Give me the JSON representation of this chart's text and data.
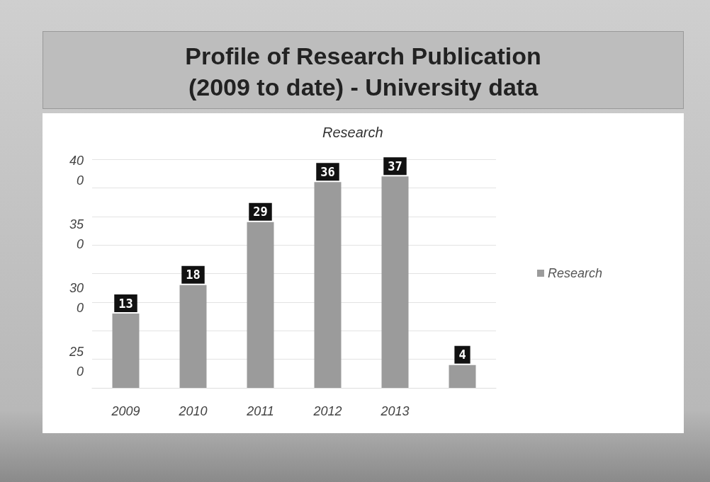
{
  "chart_data": {
    "type": "bar",
    "title": "Profile of Research Publication\n(2009 to date) - University data",
    "subtitle": "Research",
    "categories": [
      "2009",
      "2010",
      "2011",
      "2012",
      "2013",
      null
    ],
    "series": [
      {
        "name": "Research",
        "color": "#9b9b9b",
        "values": [
          13,
          18,
          29,
          36,
          37,
          4
        ]
      }
    ],
    "ylim": [
      0,
      40
    ],
    "yticks": [
      {
        "value": 0,
        "label": null
      },
      {
        "value": 5,
        "label": null
      },
      {
        "value": 10,
        "label": null
      },
      {
        "value": 15,
        "label": null
      },
      {
        "value": 20,
        "label": null
      },
      {
        "value": 25,
        "label": null
      },
      {
        "value": 30,
        "label": null
      },
      {
        "value": 35,
        "label": null
      },
      {
        "value": 40,
        "label": null
      }
    ],
    "annotations": [
      "40",
      "0",
      "35",
      "0",
      "30",
      "0",
      "25",
      "0"
    ],
    "grid": "y",
    "legend": "right",
    "data_labels": true
  }
}
